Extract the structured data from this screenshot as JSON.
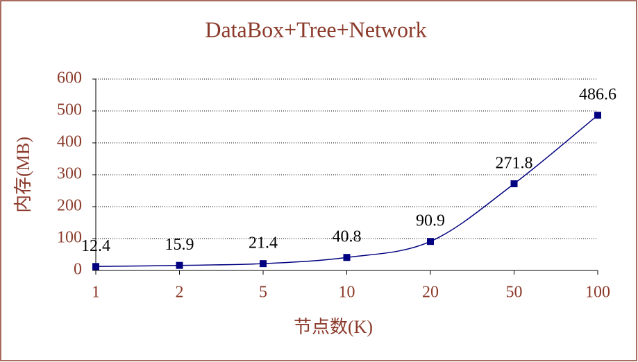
{
  "chart_data": {
    "type": "line",
    "title": "DataBox+Tree+Network",
    "x_label": "节点数(K)",
    "y_label": "内存(MB)",
    "categories": [
      "1",
      "2",
      "5",
      "10",
      "20",
      "50",
      "100"
    ],
    "values": [
      12.4,
      15.9,
      21.4,
      40.8,
      90.9,
      271.8,
      486.6
    ],
    "color": "#000080",
    "ylim": [
      0,
      600
    ],
    "yticks": [
      0,
      100,
      200,
      300,
      400,
      500,
      600
    ],
    "grid": true
  }
}
